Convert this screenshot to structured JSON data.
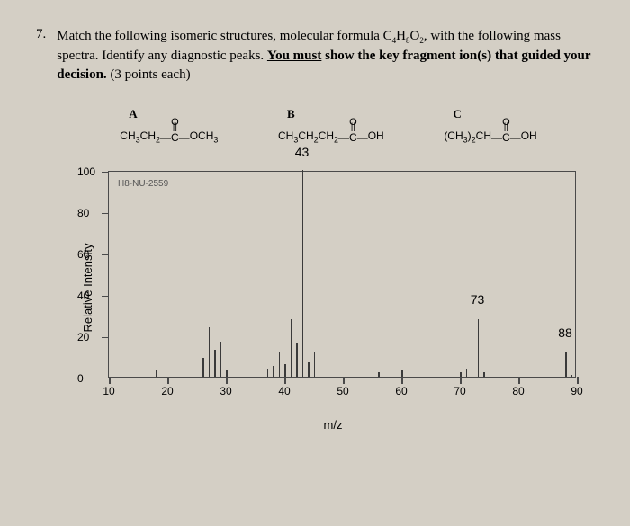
{
  "question": {
    "number": "7.",
    "text_part1": "Match the following isomeric structures, molecular formula C",
    "formula_sub1": "4",
    "text_part2": "H",
    "formula_sub2": "8",
    "text_part3": "O",
    "formula_sub3": "2",
    "text_part4": ", with the following mass spectra.  Identify any diagnostic peaks. ",
    "bold_underline": "You must",
    "bold_rest": " show the key fragment ion(s) that guided your decision.",
    "points": "  (3 points each)"
  },
  "structures": {
    "a": {
      "label": "A",
      "formula_left": "CH",
      "sub1": "3",
      "formula_mid": "CH",
      "sub2": "2",
      "bond": "—C—",
      "formula_right": "OCH",
      "sub3": "3"
    },
    "b": {
      "label": "B",
      "formula_left": "CH",
      "sub1": "3",
      "formula_mid": "CH",
      "sub2": "2",
      "formula_mid2": "CH",
      "sub3": "2",
      "bond": "—C—",
      "formula_right": "OH"
    },
    "c": {
      "label": "C",
      "formula_left": "(CH",
      "sub1": "3",
      "paren": ")",
      "sub2": "2",
      "formula_mid": "CH",
      "bond": "—C—",
      "formula_right": "OH"
    }
  },
  "chart": {
    "y_label": "Relative Intensity",
    "x_label": "m/z",
    "dataset_label": "H8-NU-2559",
    "x_min": 10,
    "x_max": 90,
    "y_min": 0,
    "y_max": 100,
    "y_ticks": [
      0,
      20,
      40,
      60,
      80,
      100
    ],
    "x_ticks": [
      10,
      20,
      30,
      40,
      50,
      60,
      70,
      80,
      90
    ],
    "peaks": [
      {
        "mz": 15,
        "intensity": 5
      },
      {
        "mz": 18,
        "intensity": 3
      },
      {
        "mz": 26,
        "intensity": 9
      },
      {
        "mz": 27,
        "intensity": 24
      },
      {
        "mz": 28,
        "intensity": 13
      },
      {
        "mz": 29,
        "intensity": 17
      },
      {
        "mz": 30,
        "intensity": 3
      },
      {
        "mz": 37,
        "intensity": 4
      },
      {
        "mz": 38,
        "intensity": 5
      },
      {
        "mz": 39,
        "intensity": 12
      },
      {
        "mz": 40,
        "intensity": 6
      },
      {
        "mz": 41,
        "intensity": 28
      },
      {
        "mz": 42,
        "intensity": 16
      },
      {
        "mz": 43,
        "intensity": 100
      },
      {
        "mz": 44,
        "intensity": 7
      },
      {
        "mz": 45,
        "intensity": 12
      },
      {
        "mz": 55,
        "intensity": 3
      },
      {
        "mz": 56,
        "intensity": 2
      },
      {
        "mz": 60,
        "intensity": 3
      },
      {
        "mz": 70,
        "intensity": 2
      },
      {
        "mz": 71,
        "intensity": 4
      },
      {
        "mz": 73,
        "intensity": 28
      },
      {
        "mz": 74,
        "intensity": 2
      },
      {
        "mz": 88,
        "intensity": 12
      },
      {
        "mz": 89,
        "intensity": 1
      }
    ],
    "labeled_peaks": [
      {
        "mz": 43,
        "label": "43",
        "y_offset": 105
      },
      {
        "mz": 73,
        "label": "73",
        "y_offset": 34
      },
      {
        "mz": 88,
        "label": "88",
        "y_offset": 18
      }
    ],
    "colors": {
      "border": "#4a4a4a",
      "peak": "#3a3a3a",
      "background": "#d4cfc5"
    }
  }
}
